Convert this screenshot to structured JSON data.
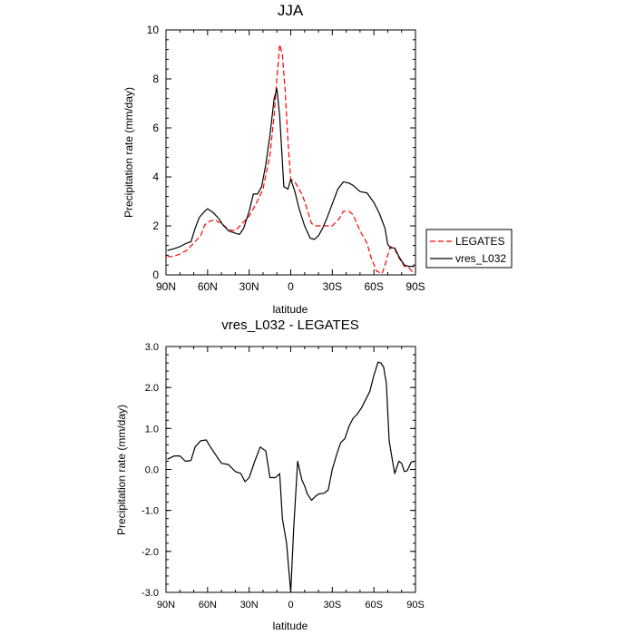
{
  "chart_data": [
    {
      "type": "line",
      "title": "JJA",
      "xlabel": "latitude",
      "ylabel": "Precipitation rate (mm/day)",
      "xlim": [
        -90,
        90
      ],
      "ylim": [
        0,
        10
      ],
      "x_ticks": [
        -90,
        -60,
        -30,
        0,
        30,
        60,
        90
      ],
      "x_tick_labels": [
        "90N",
        "60N",
        "30N",
        "0",
        "30S",
        "60S",
        "90S"
      ],
      "y_ticks": [
        0,
        2,
        4,
        6,
        8,
        10
      ],
      "y_tick_labels": [
        "0",
        "2",
        "4",
        "6",
        "8",
        "10"
      ],
      "legend": {
        "position": "right",
        "entries": [
          "LEGATES",
          "vres_L032"
        ]
      },
      "series": [
        {
          "name": "LEGATES",
          "color": "#ff0000",
          "dash": true,
          "x": [
            -89,
            -85,
            -80,
            -75,
            -70,
            -65,
            -62,
            -58,
            -55,
            -50,
            -45,
            -40,
            -35,
            -30,
            -25,
            -20,
            -15,
            -12,
            -10,
            -8,
            -6,
            -4,
            -2,
            0,
            3,
            5,
            8,
            10,
            15,
            18,
            22,
            25,
            30,
            35,
            38,
            42,
            45,
            50,
            55,
            58,
            62,
            66,
            68,
            70,
            72,
            75,
            78,
            82,
            85,
            89
          ],
          "values": [
            0.75,
            0.75,
            0.85,
            1.0,
            1.3,
            1.6,
            2.05,
            2.2,
            2.25,
            2.1,
            1.85,
            1.8,
            2.1,
            2.4,
            2.9,
            3.5,
            4.9,
            6.5,
            8.0,
            9.4,
            9.0,
            7.5,
            5.5,
            3.9,
            3.8,
            3.6,
            3.3,
            3.0,
            2.1,
            2.0,
            2.0,
            2.0,
            2.0,
            2.3,
            2.6,
            2.6,
            2.45,
            1.8,
            1.3,
            0.7,
            0.15,
            0.05,
            0.4,
            0.8,
            1.15,
            1.05,
            0.7,
            0.35,
            0.3,
            0.05
          ]
        },
        {
          "name": "vres_L032",
          "color": "#000000",
          "dash": false,
          "x": [
            -89,
            -85,
            -80,
            -75,
            -72,
            -69,
            -66,
            -62,
            -60,
            -56,
            -52,
            -49,
            -45,
            -40,
            -37,
            -34,
            -30,
            -27,
            -24,
            -21,
            -18,
            -15,
            -12,
            -10,
            -8,
            -5,
            -2,
            0,
            3,
            6,
            10,
            14,
            17,
            20,
            23,
            26,
            30,
            34,
            38,
            42,
            45,
            50,
            55,
            60,
            64,
            68,
            70,
            72,
            75,
            78,
            82,
            85,
            89
          ],
          "values": [
            1.0,
            1.05,
            1.15,
            1.3,
            1.35,
            1.9,
            2.35,
            2.6,
            2.7,
            2.55,
            2.3,
            2.05,
            1.8,
            1.7,
            1.65,
            1.9,
            2.6,
            3.3,
            3.3,
            3.6,
            4.5,
            5.7,
            7.2,
            7.6,
            6.5,
            3.6,
            3.5,
            3.9,
            3.4,
            2.7,
            2.0,
            1.5,
            1.45,
            1.6,
            1.9,
            2.3,
            2.9,
            3.5,
            3.8,
            3.75,
            3.65,
            3.4,
            3.35,
            2.95,
            2.5,
            1.9,
            1.25,
            1.1,
            1.1,
            0.75,
            0.4,
            0.35,
            0.35
          ]
        }
      ]
    },
    {
      "type": "line",
      "title": "vres_L032 - LEGATES",
      "xlabel": "latitude",
      "ylabel": "Precipitation rate (mm/day)",
      "xlim": [
        -90,
        90
      ],
      "ylim": [
        -3,
        3
      ],
      "x_ticks": [
        -90,
        -60,
        -30,
        0,
        30,
        60,
        90
      ],
      "x_tick_labels": [
        "90N",
        "60N",
        "30N",
        "0",
        "30S",
        "60S",
        "90S"
      ],
      "y_ticks": [
        -3,
        -2,
        -1,
        0,
        1,
        2,
        3
      ],
      "y_tick_labels": [
        "-3.0",
        "-2.0",
        "-1.0",
        "0.0",
        "1.0",
        "2.0",
        "3.0"
      ],
      "series": [
        {
          "name": "vres_L032 - LEGATES",
          "color": "#000000",
          "dash": false,
          "x": [
            -89,
            -84,
            -80,
            -76,
            -72,
            -69,
            -65,
            -61,
            -57,
            -53,
            -50,
            -45,
            -40,
            -36,
            -33,
            -30,
            -26,
            -22,
            -18,
            -15,
            -11,
            -8,
            -6,
            -3,
            0,
            2,
            5,
            8,
            10,
            12,
            15,
            18,
            20,
            24,
            27,
            30,
            33,
            36,
            39,
            42,
            45,
            48,
            51,
            54,
            57,
            60,
            63,
            65,
            67,
            69,
            71,
            73,
            75,
            78,
            80,
            82,
            84,
            87,
            89
          ],
          "values": [
            0.25,
            0.33,
            0.33,
            0.2,
            0.22,
            0.55,
            0.7,
            0.72,
            0.5,
            0.3,
            0.15,
            0.12,
            -0.05,
            -0.1,
            -0.3,
            -0.2,
            0.2,
            0.55,
            0.45,
            -0.2,
            -0.2,
            -0.1,
            -1.2,
            -1.8,
            -3.0,
            -1.5,
            0.2,
            -0.25,
            -0.4,
            -0.6,
            -0.75,
            -0.65,
            -0.6,
            -0.58,
            -0.5,
            0.0,
            0.35,
            0.65,
            0.75,
            1.05,
            1.25,
            1.35,
            1.5,
            1.7,
            1.9,
            2.3,
            2.62,
            2.6,
            2.5,
            2.1,
            0.7,
            0.3,
            -0.1,
            0.2,
            0.15,
            -0.05,
            -0.03,
            0.18,
            0.2
          ]
        }
      ]
    }
  ]
}
